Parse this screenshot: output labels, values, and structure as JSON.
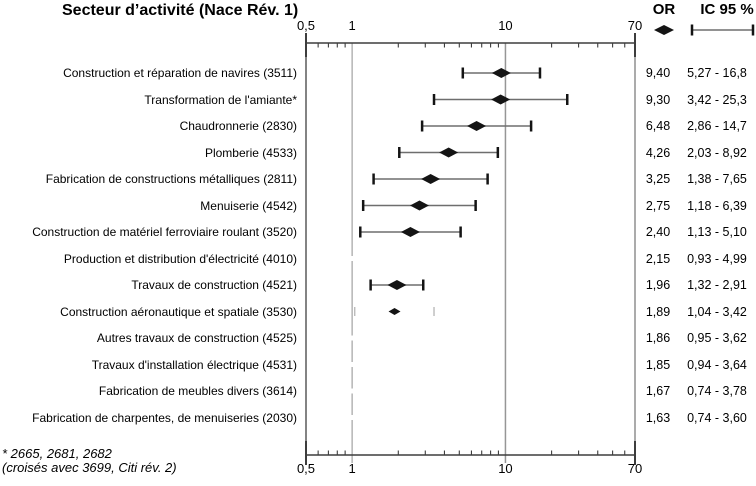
{
  "title": "Secteur d’activité (Nace Rév. 1)",
  "columns": {
    "or_header": "OR",
    "ci_header": "IC 95 %"
  },
  "footnote": {
    "line1": "* 2665, 2681, 2682",
    "line2": "(croisés avec 3699, Citi rév. 2)"
  },
  "axis": {
    "scale": "log",
    "min": 0.5,
    "max": 70,
    "major_ticks": [
      {
        "value": 0.5,
        "label": "0,5"
      },
      {
        "value": 1,
        "label": "1"
      },
      {
        "value": 10,
        "label": "10"
      },
      {
        "value": 70,
        "label": "70"
      }
    ],
    "minor_ticks": [
      0.6,
      0.7,
      0.8,
      0.9,
      2,
      3,
      4,
      5,
      6,
      7,
      8,
      9,
      20,
      30,
      40,
      50,
      60
    ],
    "gridlines": [
      1,
      10
    ]
  },
  "chart_data": {
    "type": "scatter",
    "subtype": "forest-plot",
    "title": "Secteur d’activité (Nace Rév. 1)",
    "xscale": "log",
    "xlim": [
      0.5,
      70
    ],
    "legend": [
      "OR",
      "IC 95 %"
    ],
    "rows": [
      {
        "label": "Construction et réparation de navires (3511)",
        "or": 9.4,
        "ci_low": 5.27,
        "ci_high": 16.8,
        "or_text": "9,40",
        "ci_text": "5,27 - 16,8",
        "marker": "full"
      },
      {
        "label": "Transformation de l'amiante*",
        "or": 9.3,
        "ci_low": 3.42,
        "ci_high": 25.3,
        "or_text": "9,30",
        "ci_text": "3,42 - 25,3",
        "marker": "full"
      },
      {
        "label": "Chaudronnerie (2830)",
        "or": 6.48,
        "ci_low": 2.86,
        "ci_high": 14.7,
        "or_text": "6,48",
        "ci_text": "2,86 - 14,7",
        "marker": "full"
      },
      {
        "label": "Plomberie (4533)",
        "or": 4.26,
        "ci_low": 2.03,
        "ci_high": 8.92,
        "or_text": "4,26",
        "ci_text": "2,03 - 8,92",
        "marker": "full"
      },
      {
        "label": "Fabrication de constructions métalliques (2811)",
        "or": 3.25,
        "ci_low": 1.38,
        "ci_high": 7.65,
        "or_text": "3,25",
        "ci_text": "1,38 - 7,65",
        "marker": "full"
      },
      {
        "label": "Menuiserie (4542)",
        "or": 2.75,
        "ci_low": 1.18,
        "ci_high": 6.39,
        "or_text": "2,75",
        "ci_text": "1,18 - 6,39",
        "marker": "full"
      },
      {
        "label": "Construction de matériel ferroviaire roulant (3520)",
        "or": 2.4,
        "ci_low": 1.13,
        "ci_high": 5.1,
        "or_text": "2,40",
        "ci_text": "1,13 - 5,10",
        "marker": "full"
      },
      {
        "label": "Production et distribution d'électricité (4010)",
        "or": 2.15,
        "ci_low": 0.93,
        "ci_high": 4.99,
        "or_text": "2,15",
        "ci_text": "0,93 - 4,99",
        "marker": "none"
      },
      {
        "label": "Travaux de construction (4521)",
        "or": 1.96,
        "ci_low": 1.32,
        "ci_high": 2.91,
        "or_text": "1,96",
        "ci_text": "1,32 - 2,91",
        "marker": "full"
      },
      {
        "label": "Construction aéronautique et spatiale (3530)",
        "or": 1.89,
        "ci_low": 1.04,
        "ci_high": 3.42,
        "or_text": "1,89",
        "ci_text": "1,04 - 3,42",
        "marker": "caps-small"
      },
      {
        "label": "Autres travaux de construction (4525)",
        "or": 1.86,
        "ci_low": 0.95,
        "ci_high": 3.62,
        "or_text": "1,86",
        "ci_text": "0,95 - 3,62",
        "marker": "none"
      },
      {
        "label": "Travaux d'installation électrique (4531)",
        "or": 1.85,
        "ci_low": 0.94,
        "ci_high": 3.64,
        "or_text": "1,85",
        "ci_text": "0,94 - 3,64",
        "marker": "none"
      },
      {
        "label": "Fabrication de meubles divers (3614)",
        "or": 1.67,
        "ci_low": 0.74,
        "ci_high": 3.78,
        "or_text": "1,67",
        "ci_text": "0,74 - 3,78",
        "marker": "none"
      },
      {
        "label": "Fabrication de charpentes, de menuiseries (2030)",
        "or": 1.63,
        "ci_low": 0.74,
        "ci_high": 3.6,
        "or_text": "1,63",
        "ci_text": "0,74 - 3,60",
        "marker": "none"
      }
    ]
  },
  "colors": {
    "marker": "#141414",
    "error_line": "#6e6e6e",
    "axis": "#3d3d3d",
    "gridline_1": "#b4b4b4",
    "gridline_10": "#969696",
    "left_border": "#5a5a5a",
    "right_border": "#8f8f8f",
    "faint_cap": "#b0b0b0",
    "text": "#000000"
  }
}
